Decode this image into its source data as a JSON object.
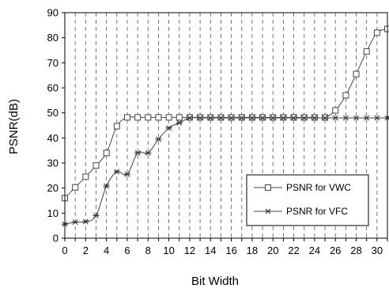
{
  "chart_data": {
    "type": "line",
    "xlabel": "Bit Width",
    "ylabel": "PSNR(dB)",
    "xlim": [
      0,
      31
    ],
    "ylim": [
      0,
      90
    ],
    "x_ticks": [
      "0",
      "2",
      "4",
      "6",
      "8",
      "10",
      "12",
      "14",
      "16",
      "18",
      "20",
      "22",
      "24",
      "26",
      "28",
      "30"
    ],
    "y_ticks": [
      "0",
      "10",
      "20",
      "30",
      "40",
      "50",
      "60",
      "70",
      "80",
      "90"
    ],
    "grid": "vertical-dashed",
    "legend_position": "lower-right",
    "x": [
      0,
      1,
      2,
      3,
      4,
      5,
      6,
      7,
      8,
      9,
      10,
      11,
      12,
      13,
      14,
      15,
      16,
      17,
      18,
      19,
      20,
      21,
      22,
      23,
      24,
      25,
      26,
      27,
      28,
      29,
      30,
      31
    ],
    "series": [
      {
        "name": "PSNR for VWC",
        "marker": "square",
        "color": "#444444",
        "values": [
          16,
          20.3,
          24.5,
          29,
          34,
          44.7,
          48.2,
          48.2,
          48.2,
          48.2,
          48.2,
          48.2,
          48.2,
          48.2,
          48.2,
          48.2,
          48.2,
          48.2,
          48.2,
          48.2,
          48.2,
          48.2,
          48.2,
          48.2,
          48.2,
          48.2,
          51,
          57,
          65.5,
          74.5,
          82,
          83.5
        ]
      },
      {
        "name": "PSNR for VFC",
        "marker": "asterisk",
        "color": "#444444",
        "values": [
          5.6,
          6.4,
          6.6,
          9,
          20.8,
          26.5,
          25.5,
          34,
          34,
          39.5,
          44,
          46,
          48,
          48,
          48,
          48,
          48,
          48,
          48,
          48,
          48,
          48,
          48,
          48,
          48,
          48,
          48,
          48,
          48,
          48,
          48,
          48
        ]
      }
    ]
  }
}
